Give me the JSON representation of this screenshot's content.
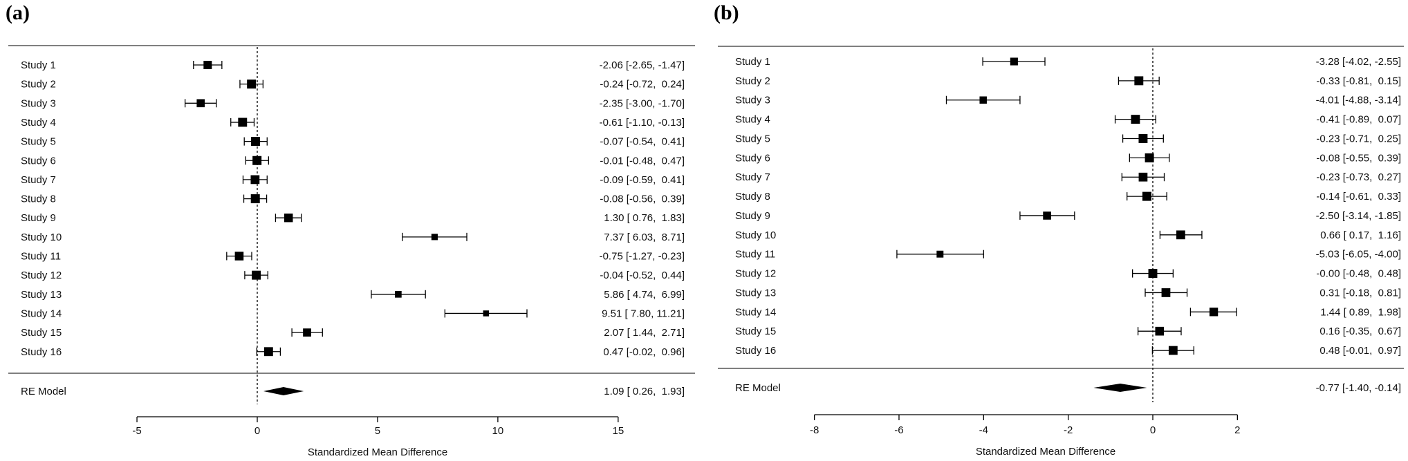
{
  "chart_data": [
    {
      "type": "forest",
      "panel_label": "(a)",
      "xlabel": "Standardized Mean Difference",
      "xticks": [
        -5,
        0,
        5,
        10,
        15
      ],
      "xlim": [
        -5,
        15
      ],
      "reference_line": 0,
      "studies": [
        {
          "label": "Study 1",
          "est": -2.06,
          "lo": -2.65,
          "hi": -1.47,
          "text": "-2.06 [-2.65, -1.47]"
        },
        {
          "label": "Study 2",
          "est": -0.24,
          "lo": -0.72,
          "hi": 0.24,
          "text": "-0.24 [-0.72,  0.24]"
        },
        {
          "label": "Study 3",
          "est": -2.35,
          "lo": -3.0,
          "hi": -1.7,
          "text": "-2.35 [-3.00, -1.70]"
        },
        {
          "label": "Study 4",
          "est": -0.61,
          "lo": -1.1,
          "hi": -0.13,
          "text": "-0.61 [-1.10, -0.13]"
        },
        {
          "label": "Study 5",
          "est": -0.07,
          "lo": -0.54,
          "hi": 0.41,
          "text": "-0.07 [-0.54,  0.41]"
        },
        {
          "label": "Study 6",
          "est": -0.01,
          "lo": -0.48,
          "hi": 0.47,
          "text": "-0.01 [-0.48,  0.47]"
        },
        {
          "label": "Study 7",
          "est": -0.09,
          "lo": -0.59,
          "hi": 0.41,
          "text": "-0.09 [-0.59,  0.41]"
        },
        {
          "label": "Study 8",
          "est": -0.08,
          "lo": -0.56,
          "hi": 0.39,
          "text": "-0.08 [-0.56,  0.39]"
        },
        {
          "label": "Study 9",
          "est": 1.3,
          "lo": 0.76,
          "hi": 1.83,
          "text": "1.30 [ 0.76,  1.83]"
        },
        {
          "label": "Study 10",
          "est": 7.37,
          "lo": 6.03,
          "hi": 8.71,
          "text": "7.37 [ 6.03,  8.71]"
        },
        {
          "label": "Study 11",
          "est": -0.75,
          "lo": -1.27,
          "hi": -0.23,
          "text": "-0.75 [-1.27, -0.23]"
        },
        {
          "label": "Study 12",
          "est": -0.04,
          "lo": -0.52,
          "hi": 0.44,
          "text": "-0.04 [-0.52,  0.44]"
        },
        {
          "label": "Study 13",
          "est": 5.86,
          "lo": 4.74,
          "hi": 6.99,
          "text": "5.86 [ 4.74,  6.99]"
        },
        {
          "label": "Study 14",
          "est": 9.51,
          "lo": 7.8,
          "hi": 11.21,
          "text": "9.51 [ 7.80, 11.21]"
        },
        {
          "label": "Study 15",
          "est": 2.07,
          "lo": 1.44,
          "hi": 2.71,
          "text": "2.07 [ 1.44,  2.71]"
        },
        {
          "label": "Study 16",
          "est": 0.47,
          "lo": -0.02,
          "hi": 0.96,
          "text": "0.47 [-0.02,  0.96]"
        }
      ],
      "summary": {
        "label": "RE Model",
        "est": 1.09,
        "lo": 0.26,
        "hi": 1.93,
        "text": "1.09 [ 0.26,  1.93]"
      }
    },
    {
      "type": "forest",
      "panel_label": "(b)",
      "xlabel": "Standardized Mean Difference",
      "xticks": [
        -8,
        -6,
        -4,
        -2,
        0,
        2
      ],
      "xlim": [
        -8,
        2
      ],
      "reference_line": 0,
      "studies": [
        {
          "label": "Study 1",
          "est": -3.28,
          "lo": -4.02,
          "hi": -2.55,
          "text": "-3.28 [-4.02, -2.55]"
        },
        {
          "label": "Study 2",
          "est": -0.33,
          "lo": -0.81,
          "hi": 0.15,
          "text": "-0.33 [-0.81,  0.15]"
        },
        {
          "label": "Study 3",
          "est": -4.01,
          "lo": -4.88,
          "hi": -3.14,
          "text": "-4.01 [-4.88, -3.14]"
        },
        {
          "label": "Study 4",
          "est": -0.41,
          "lo": -0.89,
          "hi": 0.07,
          "text": "-0.41 [-0.89,  0.07]"
        },
        {
          "label": "Study 5",
          "est": -0.23,
          "lo": -0.71,
          "hi": 0.25,
          "text": "-0.23 [-0.71,  0.25]"
        },
        {
          "label": "Study 6",
          "est": -0.08,
          "lo": -0.55,
          "hi": 0.39,
          "text": "-0.08 [-0.55,  0.39]"
        },
        {
          "label": "Study 7",
          "est": -0.23,
          "lo": -0.73,
          "hi": 0.27,
          "text": "-0.23 [-0.73,  0.27]"
        },
        {
          "label": "Study 8",
          "est": -0.14,
          "lo": -0.61,
          "hi": 0.33,
          "text": "-0.14 [-0.61,  0.33]"
        },
        {
          "label": "Study 9",
          "est": -2.5,
          "lo": -3.14,
          "hi": -1.85,
          "text": "-2.50 [-3.14, -1.85]"
        },
        {
          "label": "Study 10",
          "est": 0.66,
          "lo": 0.17,
          "hi": 1.16,
          "text": "0.66 [ 0.17,  1.16]"
        },
        {
          "label": "Study 11",
          "est": -5.03,
          "lo": -6.05,
          "hi": -4.0,
          "text": "-5.03 [-6.05, -4.00]"
        },
        {
          "label": "Study 12",
          "est": -0.0,
          "lo": -0.48,
          "hi": 0.48,
          "text": "-0.00 [-0.48,  0.48]"
        },
        {
          "label": "Study 13",
          "est": 0.31,
          "lo": -0.18,
          "hi": 0.81,
          "text": "0.31 [-0.18,  0.81]"
        },
        {
          "label": "Study 14",
          "est": 1.44,
          "lo": 0.89,
          "hi": 1.98,
          "text": "1.44 [ 0.89,  1.98]"
        },
        {
          "label": "Study 15",
          "est": 0.16,
          "lo": -0.35,
          "hi": 0.67,
          "text": "0.16 [-0.35,  0.67]"
        },
        {
          "label": "Study 16",
          "est": 0.48,
          "lo": -0.01,
          "hi": 0.97,
          "text": "0.48 [-0.01,  0.97]"
        }
      ],
      "summary": {
        "label": "RE Model",
        "est": -0.77,
        "lo": -1.4,
        "hi": -0.14,
        "text": "-0.77 [-1.40, -0.14]"
      }
    }
  ]
}
